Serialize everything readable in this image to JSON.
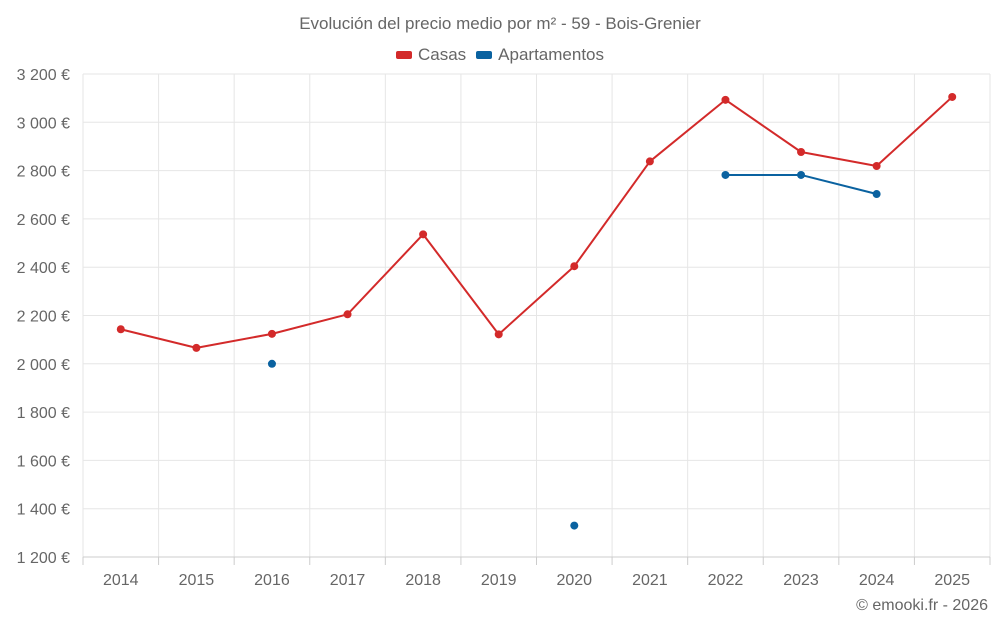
{
  "chart_data": {
    "type": "line",
    "title": "Evolución del precio medio por m² - 59 - Bois-Grenier",
    "xlabel": "",
    "ylabel": "",
    "categories": [
      "2014",
      "2015",
      "2016",
      "2017",
      "2018",
      "2019",
      "2020",
      "2021",
      "2022",
      "2023",
      "2024",
      "2025"
    ],
    "ylim": [
      1200,
      3200
    ],
    "yticks": [
      {
        "value": 3200,
        "label": "3 200 €"
      },
      {
        "value": 3000,
        "label": "3 000 €"
      },
      {
        "value": 2800,
        "label": "2 800 €"
      },
      {
        "value": 2600,
        "label": "2 600 €"
      },
      {
        "value": 2400,
        "label": "2 400 €"
      },
      {
        "value": 2200,
        "label": "2 200 €"
      },
      {
        "value": 2000,
        "label": "2 000 €"
      },
      {
        "value": 1800,
        "label": "1 800 €"
      },
      {
        "value": 1600,
        "label": "1 600 €"
      },
      {
        "value": 1400,
        "label": "1 400 €"
      },
      {
        "value": 1200,
        "label": "1 200 €"
      }
    ],
    "legend_position": "top-center",
    "grid": true,
    "series": [
      {
        "name": "Casas",
        "color": "#d32a2a",
        "values": [
          2143,
          2066,
          2124,
          2205,
          2536,
          2122,
          2404,
          2838,
          3093,
          2877,
          2819,
          3105
        ]
      },
      {
        "name": "Apartamentos",
        "color": "#0a62a0",
        "values": [
          null,
          null,
          2000,
          null,
          null,
          null,
          1330,
          null,
          2782,
          2782,
          2703,
          null
        ]
      }
    ]
  },
  "credit": "© emooki.fr - 2026"
}
